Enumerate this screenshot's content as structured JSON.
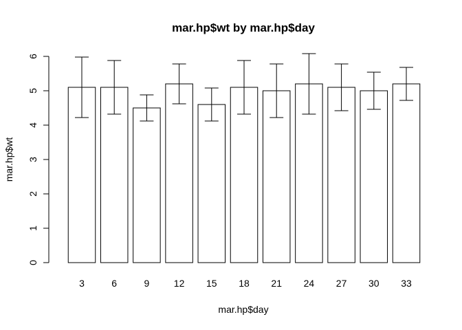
{
  "chart_data": {
    "type": "bar",
    "title": "mar.hp$wt by mar.hp$day",
    "xlabel": "mar.hp$day",
    "ylabel": "mar.hp$wt",
    "categories": [
      "3",
      "6",
      "9",
      "12",
      "15",
      "18",
      "21",
      "24",
      "27",
      "30",
      "33"
    ],
    "values": [
      5.1,
      5.1,
      4.5,
      5.2,
      4.6,
      5.1,
      5.0,
      5.2,
      5.1,
      5.0,
      5.2
    ],
    "error_low": [
      4.22,
      4.32,
      4.12,
      4.62,
      4.12,
      4.32,
      4.22,
      4.32,
      4.42,
      4.46,
      4.72
    ],
    "error_high": [
      5.98,
      5.88,
      4.88,
      5.78,
      5.08,
      5.88,
      5.78,
      6.08,
      5.78,
      5.54,
      5.68
    ],
    "ylim": [
      0,
      6
    ],
    "yticks": [
      0,
      1,
      2,
      3,
      4,
      5,
      6
    ],
    "grid": false,
    "colors": {
      "bar_fill": "#ffffff",
      "bar_stroke": "#000000"
    }
  }
}
